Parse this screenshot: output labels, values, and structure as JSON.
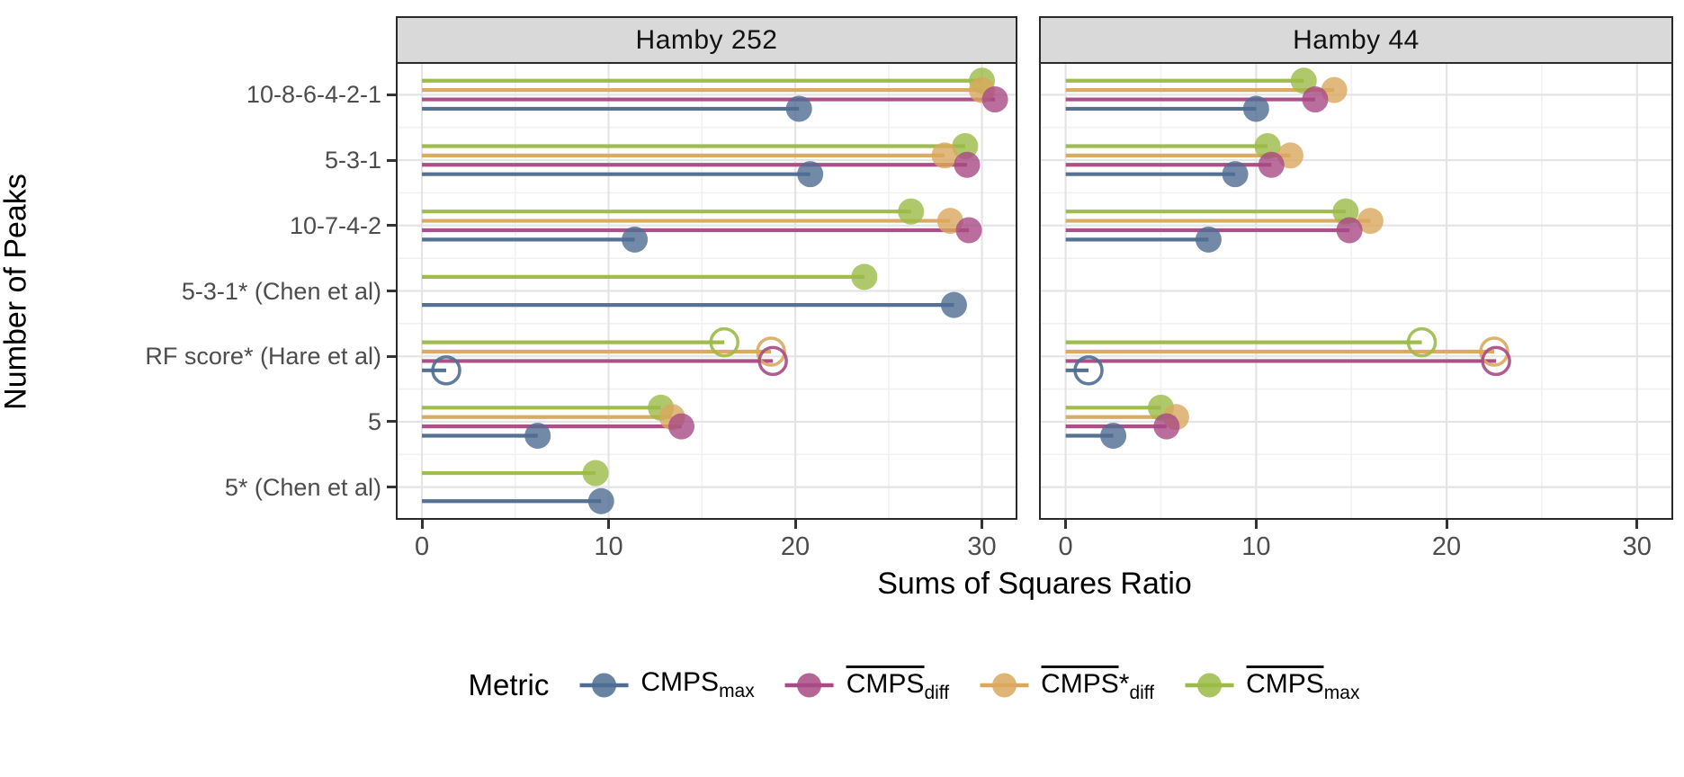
{
  "chart_data": {
    "type": "scatter",
    "style": "horizontal dodged lollipop chart, 2 facets, open circles for starred RF row",
    "facets": [
      "Hamby 252",
      "Hamby 44"
    ],
    "xlabel": "Sums of Squares Ratio",
    "ylabel": "Number of Peaks",
    "x_ticks": [
      0,
      10,
      20,
      30
    ],
    "x_minor_gridlines": [
      5,
      15,
      25
    ],
    "xlim": [
      -1.4,
      31.9
    ],
    "categories": [
      "10-8-6-4-2-1",
      "5-3-1",
      "10-7-4-2",
      "5-3-1* (Chen et al)",
      "RF score* (Hare et al)",
      "5",
      "5* (Chen et al)"
    ],
    "open_marker_category": "RF score* (Hare et al)",
    "series": [
      {
        "name": "CMPS_max",
        "label": {
          "base": "CMPS",
          "overline": false,
          "sup": "",
          "sub": "max"
        },
        "color": "#4f6d92",
        "values": {
          "Hamby 252": [
            20.2,
            20.8,
            11.4,
            28.5,
            1.3,
            6.2,
            9.6
          ],
          "Hamby 44": [
            10.0,
            8.9,
            7.5,
            null,
            1.2,
            2.5,
            null
          ]
        }
      },
      {
        "name": "CMPS_diff (overline)",
        "label": {
          "base": "CMPS",
          "overline": true,
          "sup": "",
          "sub": "diff"
        },
        "color": "#a84a84",
        "values": {
          "Hamby 252": [
            30.7,
            29.2,
            29.3,
            null,
            18.8,
            13.9,
            null
          ],
          "Hamby 44": [
            13.1,
            10.8,
            14.9,
            null,
            22.6,
            5.3,
            null
          ]
        }
      },
      {
        "name": "CMPS*_diff (overline)",
        "label": {
          "base": "CMPS",
          "overline": true,
          "sup": "*",
          "sub": "diff"
        },
        "color": "#d9a85e",
        "values": {
          "Hamby 252": [
            30.0,
            28.0,
            28.3,
            null,
            18.7,
            13.4,
            null
          ],
          "Hamby 44": [
            14.1,
            11.8,
            16.0,
            null,
            22.5,
            5.8,
            null
          ]
        }
      },
      {
        "name": "CMPS_max (overline)",
        "label": {
          "base": "CMPS",
          "overline": true,
          "sup": "",
          "sub": "max"
        },
        "color": "#9cba47",
        "values": {
          "Hamby 252": [
            30.0,
            29.1,
            26.2,
            23.7,
            16.2,
            12.8,
            9.3
          ],
          "Hamby 44": [
            12.5,
            10.6,
            14.7,
            null,
            18.7,
            5.0,
            null
          ]
        }
      }
    ],
    "legend": {
      "title": "Metric"
    },
    "colors": {
      "strip_background": "#d9d9d9",
      "panel_background": "#ffffff",
      "panel_border": "#2a2a2a",
      "grid_major": "#e4e4e4",
      "grid_minor": "#f1f1f1",
      "tick_label": "#4d4d4d",
      "axis_title": "#000000"
    }
  }
}
